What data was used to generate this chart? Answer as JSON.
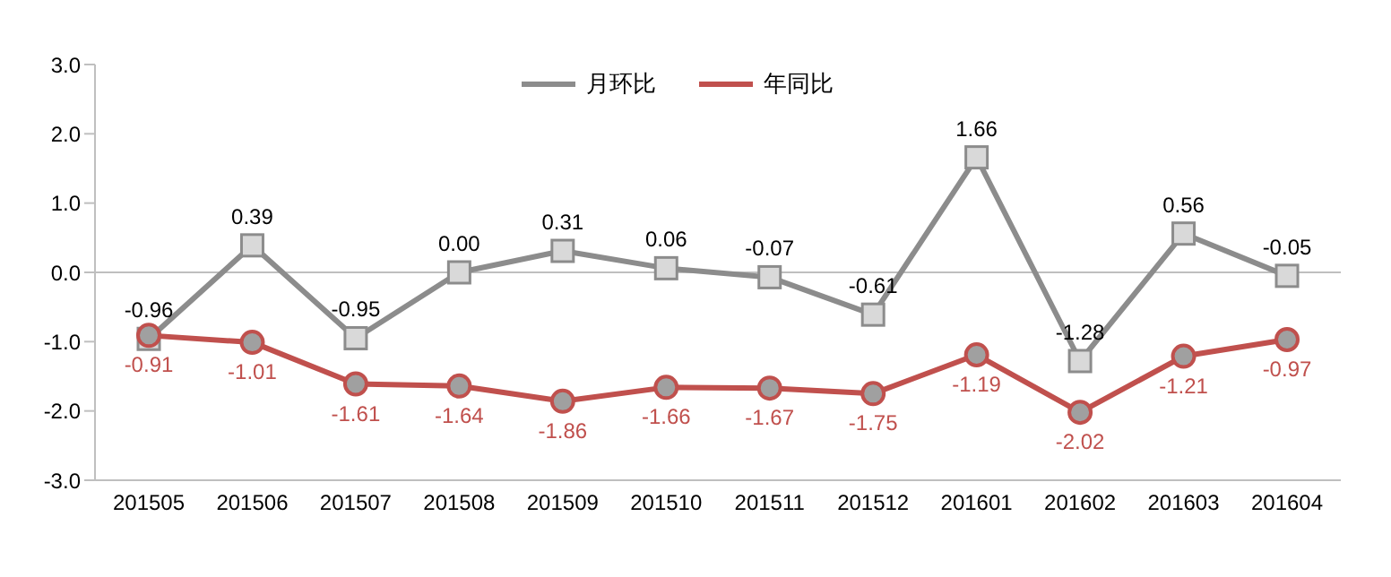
{
  "chart_data": {
    "type": "line",
    "categories": [
      "201505",
      "201506",
      "201507",
      "201508",
      "201509",
      "201510",
      "201511",
      "201512",
      "201601",
      "201602",
      "201603",
      "201604"
    ],
    "series": [
      {
        "name": "月环比",
        "color": "#8c8c8c",
        "marker": "square",
        "values": [
          -0.96,
          0.39,
          -0.95,
          0.0,
          0.31,
          0.06,
          -0.07,
          -0.61,
          1.66,
          -1.28,
          0.56,
          -0.05
        ],
        "value_labels": [
          "-0.96",
          "0.39",
          "-0.95",
          "0.00",
          "0.31",
          "0.06",
          "-0.07",
          "-0.61",
          "1.66",
          "-1.28",
          "0.56",
          "-0.05"
        ]
      },
      {
        "name": "年同比",
        "color": "#c0504d",
        "marker": "circle",
        "values": [
          -0.91,
          -1.01,
          -1.61,
          -1.64,
          -1.86,
          -1.66,
          -1.67,
          -1.75,
          -1.19,
          -2.02,
          -1.21,
          -0.97
        ],
        "value_labels": [
          "-0.91",
          "-1.01",
          "-1.61",
          "-1.64",
          "-1.86",
          "-1.66",
          "-1.67",
          "-1.75",
          "-1.19",
          "-2.02",
          "-1.21",
          "-0.97"
        ]
      }
    ],
    "ylim": [
      -3,
      3
    ],
    "yticks": [
      {
        "value": -3,
        "label": "-3.0"
      },
      {
        "value": -2,
        "label": "-2.0"
      },
      {
        "value": -1,
        "label": "-1.0"
      },
      {
        "value": 0,
        "label": "0.0"
      },
      {
        "value": 1,
        "label": "1.0"
      },
      {
        "value": 2,
        "label": "2.0"
      },
      {
        "value": 3,
        "label": "3.0"
      }
    ],
    "ref_lines": [
      {
        "axis": "y",
        "value": 0,
        "color": "#bfbfbf"
      }
    ],
    "grid": false,
    "legend": "top",
    "line_style": "solid"
  }
}
